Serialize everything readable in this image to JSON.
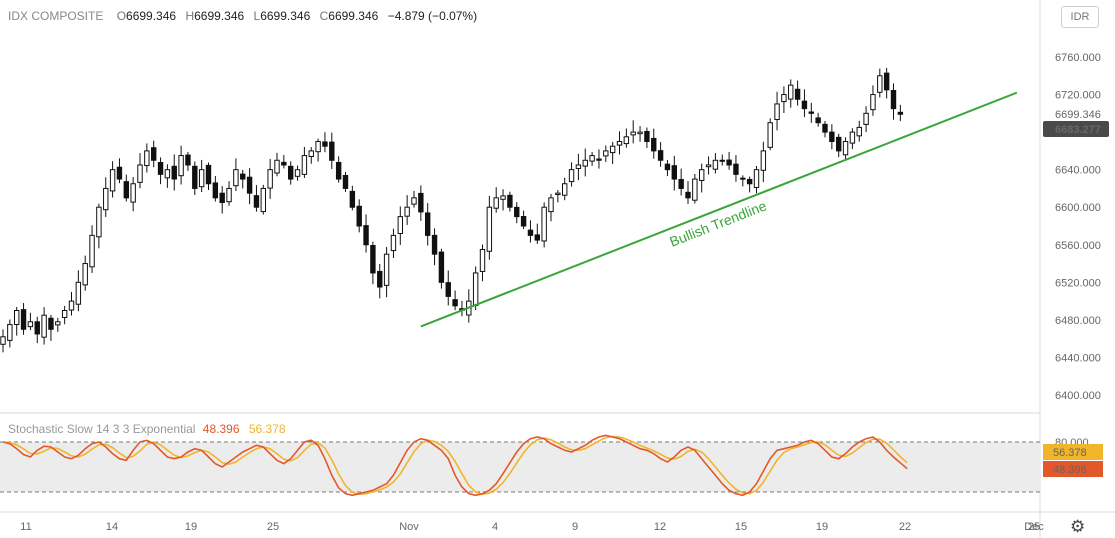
{
  "header": {
    "symbol": "IDX COMPOSITE",
    "open_label": "O",
    "open": "6699.346",
    "high_label": "H",
    "high": "6699.346",
    "low_label": "L",
    "low": "6699.346",
    "close_label": "C",
    "close": "6699.346",
    "change": "−4.879 (−0.07%)"
  },
  "currency_button": "IDR",
  "indicator": {
    "name": "Stochastic Slow 14 3 3 Exponential",
    "k_value": "48.396",
    "d_value": "56.378",
    "k_color": "#e2582b",
    "d_color": "#f0b52a"
  },
  "colors": {
    "candle": "#111111",
    "trendline": "#3aa53a",
    "price_tag_bg": "#4a4a4a",
    "band_fill": "#ececec"
  },
  "chart_data": {
    "type": "candlestick",
    "price_axis": {
      "ticks": [
        "6760.000",
        "6720.000",
        "6680.000",
        "6640.000",
        "6600.000",
        "6560.000",
        "6520.000",
        "6480.000",
        "6440.000",
        "6400.000"
      ],
      "range": [
        6400,
        6760
      ],
      "last_price": "6699.346",
      "tag_price": "6683.277"
    },
    "time_axis": {
      "labels": [
        "11",
        "14",
        "19",
        "25",
        "Nov",
        "4",
        "9",
        "12",
        "15",
        "19",
        "22",
        "25",
        "Dec"
      ]
    },
    "close_path": [
      6462,
      6475,
      6490,
      6470,
      6478,
      6465,
      6485,
      6470,
      6478,
      6490,
      6500,
      6520,
      6540,
      6570,
      6600,
      6620,
      6640,
      6630,
      6610,
      6625,
      6645,
      6660,
      6650,
      6635,
      6640,
      6630,
      6655,
      6645,
      6620,
      6640,
      6625,
      6610,
      6605,
      6620,
      6640,
      6630,
      6615,
      6600,
      6620,
      6640,
      6650,
      6645,
      6630,
      6640,
      6655,
      6660,
      6670,
      6665,
      6650,
      6630,
      6620,
      6600,
      6580,
      6560,
      6530,
      6515,
      6550,
      6570,
      6590,
      6600,
      6610,
      6595,
      6570,
      6550,
      6520,
      6505,
      6495,
      6490,
      6500,
      6530,
      6555,
      6600,
      6610,
      6612,
      6600,
      6590,
      6580,
      6570,
      6565,
      6600,
      6610,
      6615,
      6625,
      6640,
      6645,
      6650,
      6655,
      6650,
      6660,
      6665,
      6670,
      6675,
      6680,
      6680,
      6670,
      6660,
      6650,
      6640,
      6630,
      6620,
      6610,
      6630,
      6640,
      6645,
      6650,
      6650,
      6645,
      6635,
      6630,
      6625,
      6640,
      6660,
      6690,
      6710,
      6720,
      6730,
      6715,
      6705,
      6700,
      6690,
      6680,
      6670,
      6660,
      6670,
      6680,
      6685,
      6700,
      6720,
      6740,
      6725,
      6705,
      6699
    ],
    "trendline_label": "Bullish Trendline",
    "trendline": {
      "from": {
        "bar": 61,
        "price": 6473
      },
      "to": {
        "bar": 148,
        "price": 6722
      }
    },
    "stochastic": {
      "levels": [
        80,
        20
      ],
      "level_label": "80.000",
      "k_label": "48.396",
      "d_label": "56.378",
      "k": [
        80,
        78,
        72,
        65,
        62,
        70,
        75,
        74,
        68,
        62,
        60,
        64,
        72,
        78,
        80,
        74,
        66,
        60,
        58,
        70,
        80,
        82,
        78,
        70,
        62,
        60,
        62,
        68,
        72,
        70,
        62,
        54,
        50,
        56,
        62,
        68,
        72,
        76,
        74,
        66,
        58,
        54,
        60,
        70,
        80,
        82,
        76,
        60,
        40,
        25,
        18,
        16,
        18,
        20,
        22,
        26,
        30,
        40,
        55,
        70,
        80,
        84,
        82,
        76,
        70,
        60,
        40,
        26,
        18,
        16,
        18,
        22,
        30,
        42,
        55,
        68,
        78,
        84,
        86,
        84,
        78,
        74,
        70,
        68,
        72,
        76,
        82,
        86,
        88,
        86,
        84,
        80,
        76,
        72,
        70,
        66,
        60,
        56,
        62,
        70,
        74,
        70,
        60,
        50,
        40,
        30,
        22,
        18,
        16,
        20,
        30,
        45,
        60,
        70,
        72,
        74,
        76,
        80,
        82,
        78,
        70,
        62,
        60,
        66,
        74,
        80,
        84,
        86,
        80,
        70,
        62,
        55,
        48
      ]
    }
  }
}
